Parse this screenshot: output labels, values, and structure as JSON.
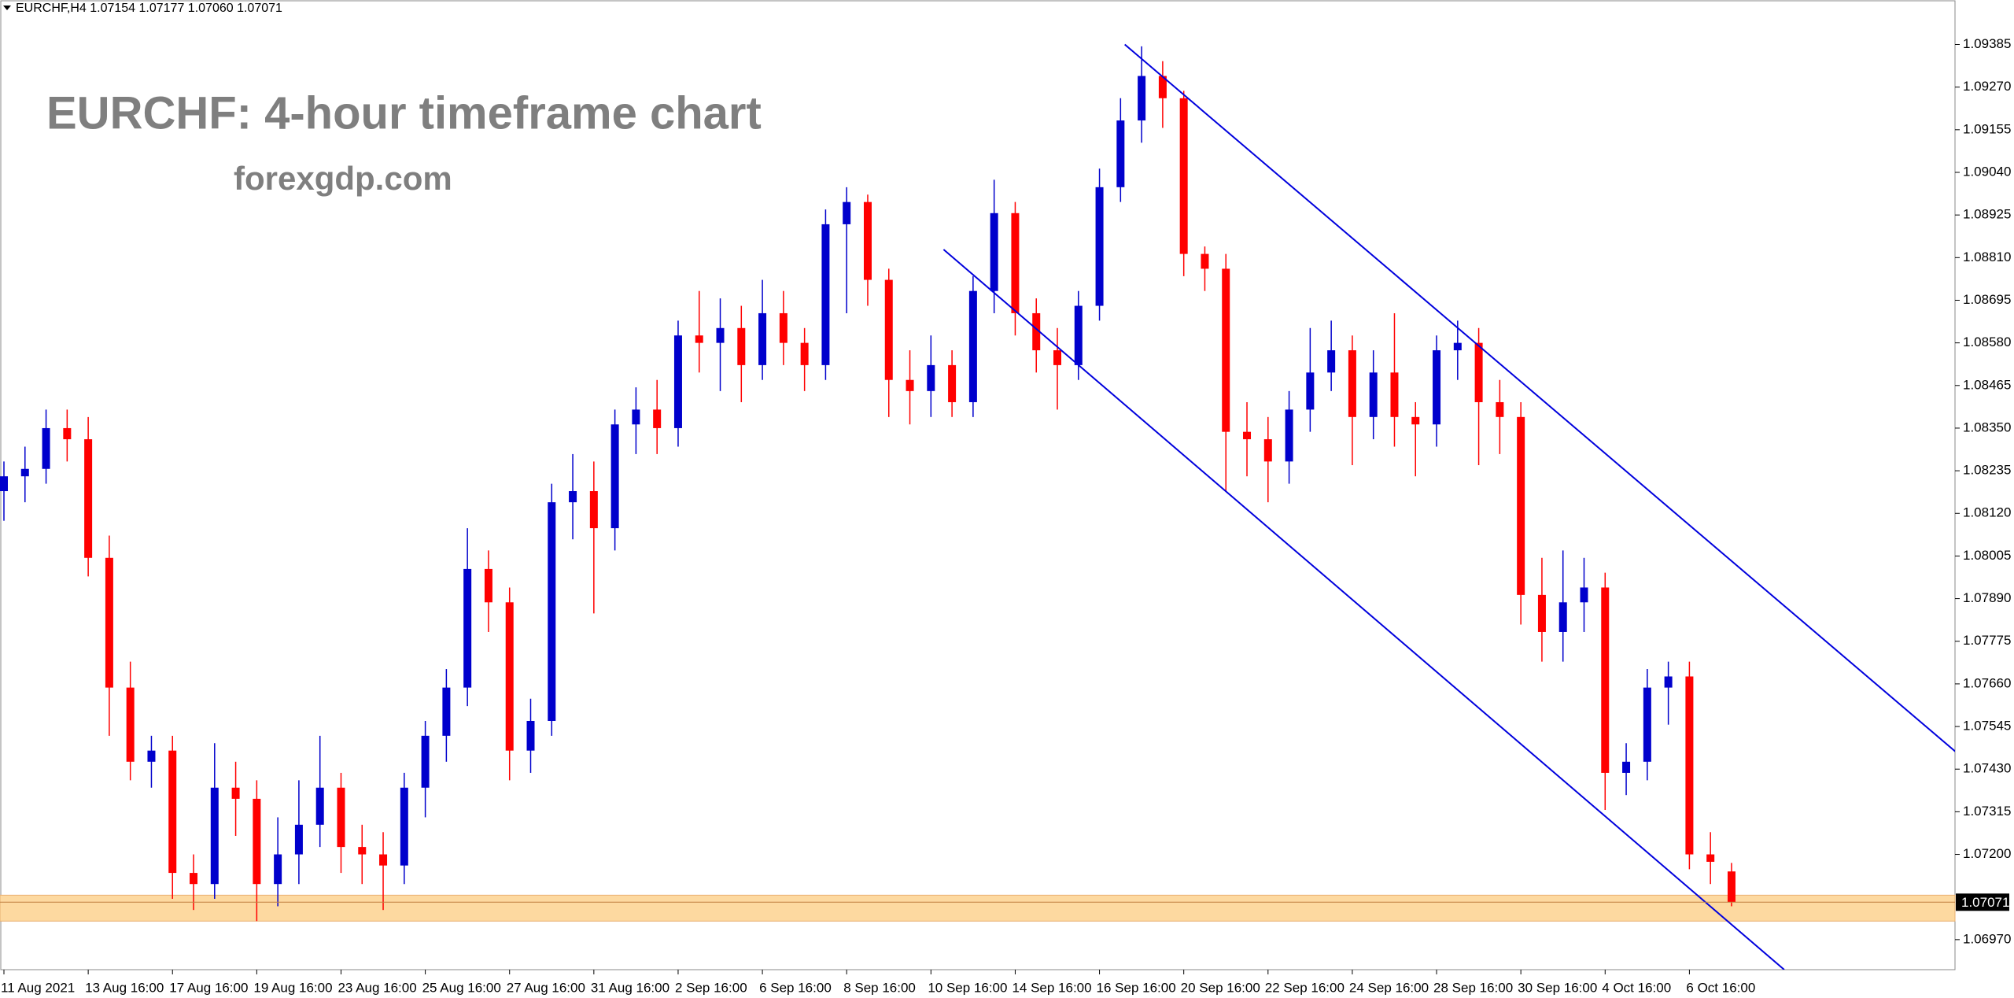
{
  "chart_data": {
    "type": "candlestick",
    "header": "EURCHF,H4  1.07154 1.07177 1.07060 1.07071",
    "title": "EURCHF: 4-hour timeframe chart",
    "subtitle": "forexgdp.com",
    "categories": [
      "11 Aug 2021",
      null,
      null,
      null,
      "13 Aug 16:00",
      null,
      null,
      null,
      "17 Aug 16:00",
      null,
      null,
      null,
      "19 Aug 16:00",
      null,
      null,
      null,
      "23 Aug 16:00",
      null,
      null,
      null,
      "25 Aug 16:00",
      null,
      null,
      null,
      "27 Aug 16:00",
      null,
      null,
      null,
      "31 Aug 16:00",
      null,
      null,
      null,
      "2 Sep 16:00",
      null,
      null,
      null,
      "6 Sep 16:00",
      null,
      null,
      null,
      "8 Sep 16:00",
      null,
      null,
      null,
      "10 Sep 16:00",
      null,
      null,
      null,
      "14 Sep 16:00",
      null,
      null,
      null,
      "16 Sep 16:00",
      null,
      null,
      null,
      "20 Sep 16:00",
      null,
      null,
      null,
      "22 Sep 16:00",
      null,
      null,
      null,
      "24 Sep 16:00",
      null,
      null,
      null,
      "28 Sep 16:00",
      null,
      null,
      null,
      "30 Sep 16:00",
      null,
      null,
      null,
      "4 Oct 16:00",
      null,
      null,
      null,
      "6 Oct 16:00",
      null,
      null
    ],
    "open": [
      1.0818,
      1.0822,
      1.0824,
      1.0835,
      1.0832,
      1.08,
      1.0765,
      1.0745,
      1.0748,
      1.0715,
      1.0712,
      1.0738,
      1.0735,
      1.0712,
      1.072,
      1.0728,
      1.0738,
      1.0722,
      1.072,
      1.0717,
      1.0738,
      1.0752,
      1.0765,
      1.0797,
      1.0788,
      1.0748,
      1.0756,
      1.0815,
      1.0818,
      1.0808,
      1.0836,
      1.084,
      1.0835,
      1.086,
      1.0858,
      1.0862,
      1.0852,
      1.0866,
      1.0858,
      1.0852,
      1.089,
      1.0896,
      1.0875,
      1.0848,
      1.0845,
      1.0852,
      1.0842,
      1.0872,
      1.0893,
      1.0866,
      1.0856,
      1.0852,
      1.0868,
      1.09,
      1.0918,
      1.093,
      1.0924,
      1.0882,
      1.0878,
      1.0834,
      1.0832,
      1.0826,
      1.084,
      1.085,
      1.0856,
      1.0838,
      1.085,
      1.0838,
      1.0836,
      1.0856,
      1.0858,
      1.0842,
      1.0838,
      1.079,
      1.078,
      1.0788,
      1.0792,
      1.0742,
      1.0745,
      1.0765,
      1.0768,
      1.072,
      1.07154
    ],
    "high": [
      1.0826,
      1.083,
      1.084,
      1.084,
      1.0838,
      1.0806,
      1.0772,
      1.0752,
      1.0752,
      1.072,
      1.075,
      1.0745,
      1.074,
      1.073,
      1.074,
      1.0752,
      1.0742,
      1.0728,
      1.0726,
      1.0742,
      1.0756,
      1.077,
      1.0808,
      1.0802,
      1.0792,
      1.0762,
      1.082,
      1.0828,
      1.0826,
      1.084,
      1.0846,
      1.0848,
      1.0864,
      1.0872,
      1.087,
      1.0868,
      1.0875,
      1.0872,
      1.0862,
      1.0894,
      1.09,
      1.0898,
      1.0878,
      1.0856,
      1.086,
      1.0856,
      1.0876,
      1.0902,
      1.0896,
      1.087,
      1.0862,
      1.0872,
      1.0905,
      1.0924,
      1.0938,
      1.0934,
      1.0926,
      1.0884,
      1.0882,
      1.0842,
      1.0838,
      1.0845,
      1.0862,
      1.0864,
      1.086,
      1.0856,
      1.0866,
      1.0842,
      1.086,
      1.0864,
      1.0862,
      1.0848,
      1.0842,
      1.08,
      1.0802,
      1.08,
      1.0796,
      1.075,
      1.077,
      1.0772,
      1.0772,
      1.0726,
      1.07177
    ],
    "low": [
      1.081,
      1.0815,
      1.082,
      1.0826,
      1.0795,
      1.0752,
      1.074,
      1.0738,
      1.0708,
      1.0705,
      1.0708,
      1.0725,
      1.0702,
      1.0706,
      1.0712,
      1.0722,
      1.0715,
      1.0712,
      1.0705,
      1.0712,
      1.073,
      1.0745,
      1.076,
      1.078,
      1.074,
      1.0742,
      1.0752,
      1.0805,
      1.0785,
      1.0802,
      1.0828,
      1.0828,
      1.083,
      1.085,
      1.0845,
      1.0842,
      1.0848,
      1.0852,
      1.0845,
      1.0848,
      1.0866,
      1.0868,
      1.0838,
      1.0836,
      1.0838,
      1.0838,
      1.0838,
      1.0866,
      1.086,
      1.085,
      1.084,
      1.0848,
      1.0864,
      1.0896,
      1.0912,
      1.0916,
      1.0876,
      1.0872,
      1.0818,
      1.0822,
      1.0815,
      1.082,
      1.0834,
      1.0845,
      1.0825,
      1.0832,
      1.083,
      1.0822,
      1.083,
      1.0848,
      1.0825,
      1.0828,
      1.0782,
      1.0772,
      1.0772,
      1.078,
      1.0732,
      1.0736,
      1.074,
      1.0755,
      1.0716,
      1.0712,
      1.0706
    ],
    "close": [
      1.0822,
      1.0824,
      1.0835,
      1.0832,
      1.08,
      1.0765,
      1.0745,
      1.0748,
      1.0715,
      1.0712,
      1.0738,
      1.0735,
      1.0712,
      1.072,
      1.0728,
      1.0738,
      1.0722,
      1.072,
      1.0717,
      1.0738,
      1.0752,
      1.0765,
      1.0797,
      1.0788,
      1.0748,
      1.0756,
      1.0815,
      1.0818,
      1.0808,
      1.0836,
      1.084,
      1.0835,
      1.086,
      1.0858,
      1.0862,
      1.0852,
      1.0866,
      1.0858,
      1.0852,
      1.089,
      1.0896,
      1.0875,
      1.0848,
      1.0845,
      1.0852,
      1.0842,
      1.0872,
      1.0893,
      1.0866,
      1.0856,
      1.0852,
      1.0868,
      1.09,
      1.0918,
      1.093,
      1.0924,
      1.0882,
      1.0878,
      1.0834,
      1.0832,
      1.0826,
      1.084,
      1.085,
      1.0856,
      1.0838,
      1.085,
      1.0838,
      1.0836,
      1.0856,
      1.0858,
      1.0842,
      1.0838,
      1.079,
      1.078,
      1.0788,
      1.0792,
      1.0742,
      1.0745,
      1.0765,
      1.0768,
      1.072,
      1.0718,
      1.07071
    ],
    "up_color": "#0000cc",
    "down_color": "#ff0000",
    "last_price": 1.07071,
    "zone": [
      1.0702,
      1.0709
    ],
    "zone_color": "#fdd9a0",
    "trendlines": [
      {
        "x": [
          53.2,
          92.8
        ],
        "y": [
          1.09385,
          1.07469
        ]
      },
      {
        "x": [
          44.6,
          84.5
        ],
        "y": [
          1.08832,
          1.06889
        ]
      }
    ],
    "trendline_color": "#0000dd",
    "ylim": [
      1.06889,
      1.09505
    ],
    "yticks": [
      {
        "value": 1.0697,
        "label": "1.06970"
      },
      {
        "value": 1.072,
        "label": "1.07200"
      },
      1.07315,
      {
        "value": 1.0743,
        "label": "1.07430"
      },
      1.07545,
      {
        "value": 1.0766,
        "label": "1.07660"
      },
      1.07775,
      {
        "value": 1.0789,
        "label": "1.07890"
      },
      1.08005,
      {
        "value": 1.0812,
        "label": "1.08120"
      },
      1.08235,
      {
        "value": 1.0835,
        "label": "1.08350"
      },
      1.08465,
      {
        "value": 1.0858,
        "label": "1.08580"
      },
      1.08695,
      {
        "value": 1.0881,
        "label": "1.08810"
      },
      1.08925,
      {
        "value": 1.0904,
        "label": "1.09040"
      },
      1.09155,
      {
        "value": 1.0927,
        "label": "1.09270"
      },
      1.09385
    ],
    "grid": false
  }
}
